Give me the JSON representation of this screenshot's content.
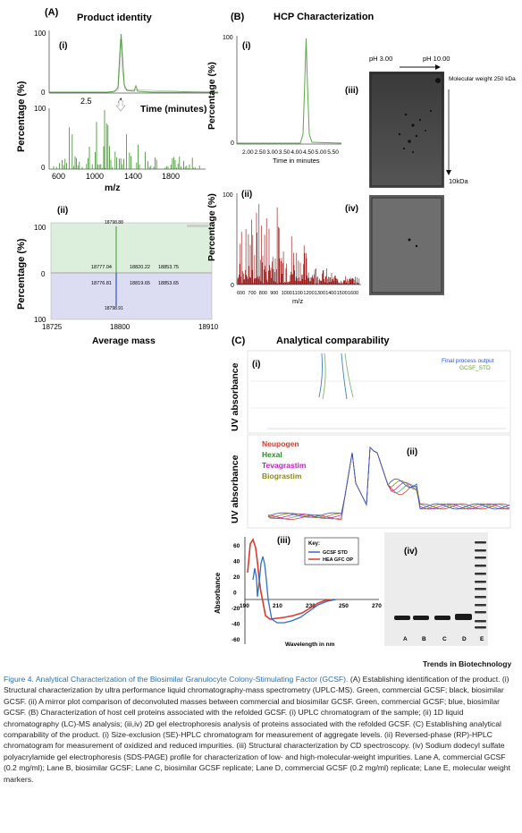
{
  "panels": {
    "A": {
      "letter": "(A)",
      "title": "Product identity",
      "i": {
        "label": "(i)",
        "ylabel": "Percentage (%)",
        "y100": "100",
        "y0": "0",
        "xticks": [
          "2.5",
          "4"
        ],
        "xlabel": "Time (minutes)"
      },
      "ms": {
        "y100": "100",
        "y0": "0",
        "xticks": [
          "600",
          "1000",
          "1400",
          "1800"
        ],
        "xlabel": "m/z"
      },
      "ii": {
        "label": "(ii)",
        "ylabel": "Percentage (%)",
        "y100top": "100",
        "y0": "0",
        "y100bot": "100",
        "top_peak": "18798.88",
        "top_labels": [
          "18777.04",
          "18820.22",
          "18853.75"
        ],
        "bot_labels": [
          "18776.81",
          "18819.65",
          "18853.65"
        ],
        "bot_peak": "18798.91",
        "xticks": [
          "18725",
          "18800",
          "18910"
        ],
        "xlabel": "Average mass"
      }
    },
    "B": {
      "letter": "(B)",
      "title": "HCP Characterization",
      "i": {
        "label": "(i)",
        "ylabel": "Percentage (%)",
        "y100": "100",
        "y0": "0",
        "xticks": [
          "2.00",
          "2.50",
          "3.00",
          "3.50",
          "4.00",
          "4.50",
          "5.00",
          "5.50"
        ],
        "xlabel": "Time in minutes"
      },
      "ii": {
        "label": "(ii)",
        "ylabel": "Percentage (%)",
        "y100": "100",
        "y0": "0",
        "xticks": [
          "600",
          "700",
          "800",
          "900",
          "1000",
          "1100",
          "1200",
          "1300",
          "1400",
          "1500",
          "1600"
        ],
        "xlabel": "m/z"
      },
      "iii": {
        "label": "(iii)",
        "ph_low": "pH 3.00",
        "ph_high": "pH 10.00",
        "mw_high": "Molecular weight 250 kDa",
        "mw_low": "10kDa"
      },
      "iv": {
        "label": "(iv)"
      }
    },
    "C": {
      "letter": "(C)",
      "title": "Analytical comparability",
      "i": {
        "label": "(i)",
        "ylabel": "UV absorbance",
        "legend": [
          "Final process output",
          "GCSF_STD"
        ]
      },
      "ii": {
        "label": "(ii)",
        "ylabel": "UV absorbance",
        "legend": [
          "Neupogen",
          "Hexal",
          "Tevagrastim",
          "Biograstim"
        ]
      },
      "iii": {
        "label": "(iii)",
        "ylabel": "Absorbance",
        "xlabel": "Wavelength in nm",
        "yticks": [
          "60",
          "40",
          "20",
          "0",
          "-20",
          "-40",
          "-60"
        ],
        "xticks": [
          "190",
          "210",
          "230",
          "250",
          "270"
        ],
        "key_title": "Key:",
        "key": [
          "GCSF STD",
          "HEA GFC OP"
        ]
      },
      "iv": {
        "label": "(iv)",
        "lanes": [
          "A",
          "B",
          "C",
          "D",
          "E"
        ]
      }
    }
  },
  "colors": {
    "green": "#5aa64a",
    "black": "#222222",
    "darkred": "#8b0000",
    "blue": "#2f55c8",
    "red": "#d93a2e",
    "teal": "#4f9a86",
    "magenta": "#c21ac6",
    "olive": "#8a8a1a"
  },
  "source": "Trends in Biotechnology",
  "caption": {
    "figure_label": "Figure 4. Analytical Characterization of the Biosimilar Granulocyte Colony-Stimulating Factor (GCSF).",
    "text": "(A) Establishing identification of the product. (i) Structural characterization by ultra performance liquid chromatography-mass spectrometry (UPLC-MS). Green, commercial GCSF; black, biosimilar GCSF. (ii) A mirror plot comparison of deconvoluted masses between commercial and biosimilar GCSF. Green, commercial GCSF; blue, biosimilar GCSF. (B) Characterization of host cell proteins associated with the refolded GCSF. (i) UPLC chromatogram of the sample; (ii) 1D liquid chromatography (LC)-MS analysis; (iii,iv) 2D gel electrophoresis analysis of proteins associated with the refolded GCSF. (C) Establishing analytical comparability of the product. (i) Size-exclusion (SE)-HPLC chromatogram for measurement of aggregate levels. (ii) Reversed-phase (RP)-HPLC chromatogram for measurement of oxidized and reduced impurities. (iii) Structural characterization by CD spectroscopy. (iv) Sodium dodecyl sulfate polyacrylamide gel electrophoresis (SDS-PAGE) profile for characterization of low- and high-molecular-weight impurities. Lane A, commercial GCSF (0.2 mg/ml); Lane B, biosimilar GCSF; Lane C, biosimilar GCSF replicate; Lane D, commercial GCSF (0.2 mg/ml) replicate; Lane E, molecular weight markers."
  }
}
